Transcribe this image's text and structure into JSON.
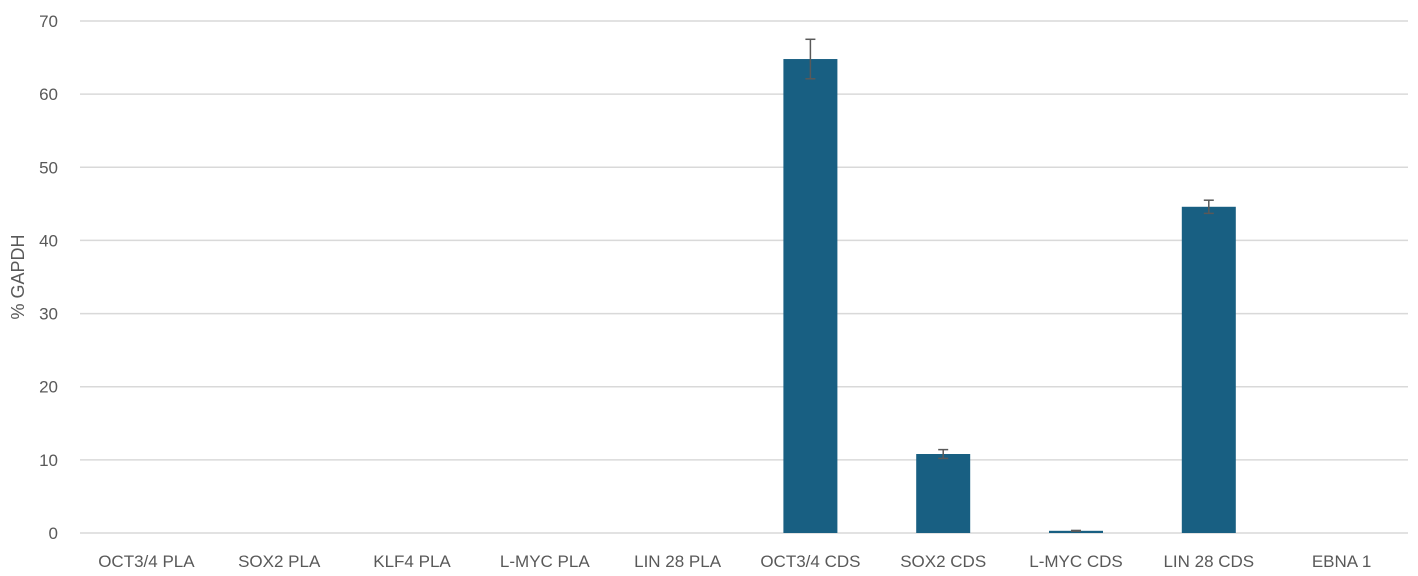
{
  "chart_data": {
    "type": "bar",
    "title": "",
    "xlabel": "",
    "ylabel": "% GAPDH",
    "ylim": [
      0,
      70
    ],
    "yticks": [
      0,
      10,
      20,
      30,
      40,
      50,
      60,
      70
    ],
    "grid": true,
    "legend": "none",
    "categories": [
      "OCT3/4 PLA",
      "SOX2 PLA",
      "KLF4 PLA",
      "L-MYC PLA",
      "LIN 28 PLA",
      "OCT3/4 CDS",
      "SOX2 CDS",
      "L-MYC CDS",
      "LIN 28 CDS",
      "EBNA 1"
    ],
    "values": [
      0,
      0,
      0,
      0,
      0,
      64.8,
      10.8,
      0.3,
      44.6,
      0
    ],
    "errors": [
      null,
      null,
      null,
      null,
      null,
      2.7,
      0.6,
      0.05,
      0.9,
      null
    ],
    "colors": {
      "bar": "#185f82",
      "grid": "#d9d9d9",
      "text": "#595959",
      "error": "#595959"
    }
  }
}
